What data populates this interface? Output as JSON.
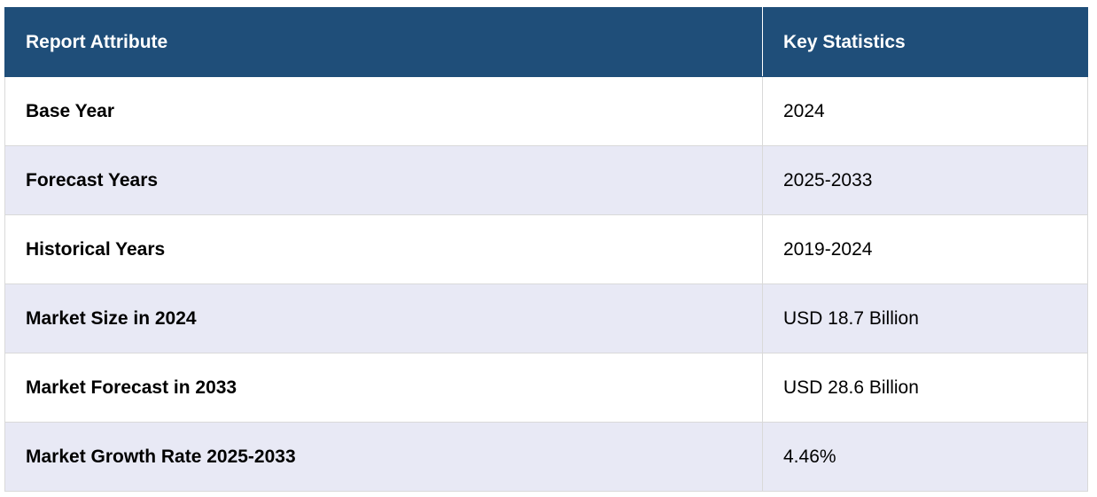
{
  "table": {
    "headers": [
      "Report Attribute",
      "Key Statistics"
    ],
    "rows": [
      {
        "attribute": "Base Year",
        "value": "2024"
      },
      {
        "attribute": "Forecast Years",
        "value": "2025-2033"
      },
      {
        "attribute": "Historical Years",
        "value": "2019-2024"
      },
      {
        "attribute": "Market Size in 2024",
        "value": "USD 18.7 Billion"
      },
      {
        "attribute": "Market Forecast in 2033",
        "value": "USD 28.6 Billion"
      },
      {
        "attribute": "Market Growth Rate 2025-2033",
        "value": "4.46%"
      }
    ]
  },
  "colors": {
    "header_bg": "#1f4e79",
    "header_text": "#ffffff",
    "row_alt_bg": "#e8e9f5",
    "border": "#d9d9d9"
  }
}
